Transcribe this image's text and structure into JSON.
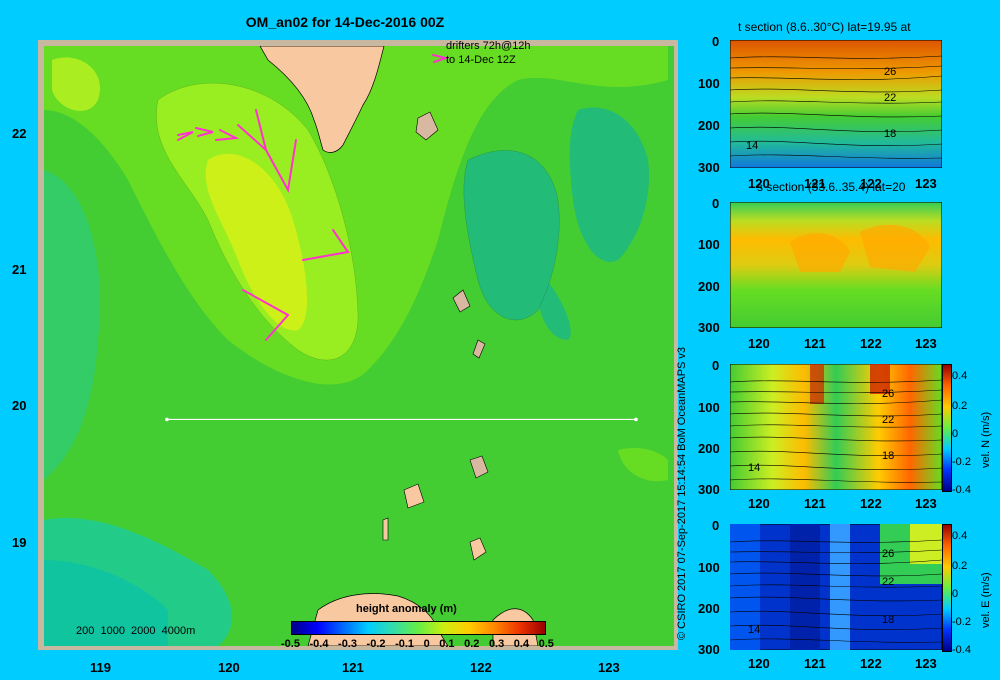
{
  "main_map": {
    "title": "OM_an02 for 14-Dec-2016 00Z",
    "drifters_line1": "drifters 72h@12h",
    "drifters_line2": "to 14-Dec 12Z",
    "lon_ticks": [
      "119",
      "120",
      "121",
      "122",
      "123"
    ],
    "lat_ticks": [
      "22",
      "21",
      "20",
      "19"
    ],
    "depth_legend": "200  1000  2000  4000m",
    "colorbar_label": "height anomaly (m)",
    "colorbar_ticks": [
      "-0.5",
      "-0.4",
      "-0.3",
      "-0.2",
      "-0.1",
      "0",
      "0.1",
      "0.2",
      "0.3",
      "0.4",
      "0.5"
    ],
    "section_line": {
      "lat": 20.0,
      "lon_start": 119.5,
      "lon_end": 123.2
    }
  },
  "panels": [
    {
      "title": "t section (8.6..30°C) lat=19.95 at",
      "y_ticks": [
        "0",
        "100",
        "200",
        "300"
      ],
      "x_ticks": [
        "120",
        "121",
        "122",
        "123"
      ],
      "contour_labels": [
        "26",
        "22",
        "18",
        "14"
      ],
      "colorbar": null
    },
    {
      "title": "s section (33.6..35.4) lat=20",
      "y_ticks": [
        "0",
        "100",
        "200",
        "300"
      ],
      "x_ticks": [
        "120",
        "121",
        "122",
        "123"
      ],
      "contour_labels": [],
      "colorbar": null
    },
    {
      "title": "",
      "y_ticks": [
        "0",
        "100",
        "200",
        "300"
      ],
      "x_ticks": [
        "120",
        "121",
        "122",
        "123"
      ],
      "contour_labels": [
        "26",
        "22",
        "18",
        "14"
      ],
      "colorbar": {
        "label": "vel. N (m/s)",
        "ticks": [
          "0.4",
          "0.2",
          "0",
          "-0.2",
          "-0.4"
        ]
      }
    },
    {
      "title": "",
      "y_ticks": [
        "0",
        "100",
        "200",
        "300"
      ],
      "x_ticks": [
        "120",
        "121",
        "122",
        "123"
      ],
      "contour_labels": [
        "26",
        "22",
        "18",
        "14"
      ],
      "colorbar": {
        "label": "vel. E (m/s)",
        "ticks": [
          "0.4",
          "0.2",
          "0",
          "-0.2",
          "-0.4"
        ]
      }
    }
  ],
  "credit": "© CSIRO 2017   07-Sep-2017 15:14:54 BoM OceanMAPS v3",
  "colors": {
    "background": "#00ccff",
    "land": "#f8c8a0",
    "contour_line": "#000000",
    "drifter": "#ff33cc"
  }
}
